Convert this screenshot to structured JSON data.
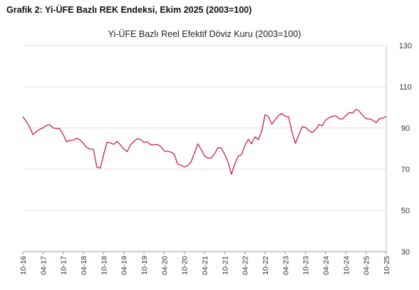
{
  "page_title": "Grafik 2: Yi-ÜFE Bazlı REK Endeksi, Ekim 2025 (2003=100)",
  "chart_data": {
    "type": "line",
    "title": "Yi-ÜFE Bazlı Reel Efektif Döviz Kuru (2003=100)",
    "ylim": [
      30,
      130
    ],
    "yticks": [
      30,
      50,
      70,
      90,
      110,
      130
    ],
    "y_axis_position": "right",
    "grid": true,
    "color": "#c8204a",
    "xtick_labels": [
      "10-16",
      "04-17",
      "10-17",
      "04-18",
      "10-18",
      "04-19",
      "10-19",
      "04-20",
      "10-20",
      "04-21",
      "10-21",
      "04-22",
      "10-22",
      "04-23",
      "10-23",
      "04-24",
      "10-24",
      "04-25",
      "10-25"
    ],
    "series": [
      {
        "values": [
          95.5,
          93.2,
          90.5,
          86.8,
          88.2,
          89.3,
          90.0,
          91.2,
          91.5,
          90.0,
          89.8,
          89.6,
          86.8,
          83.3,
          84.0,
          84.1,
          85.0,
          84.2,
          82.5,
          80.5,
          79.7,
          79.6,
          71.0,
          70.5,
          77.0,
          83.0,
          82.8,
          82.0,
          83.5,
          81.8,
          79.8,
          78.5,
          81.8,
          83.4,
          84.8,
          84.3,
          83.0,
          83.2,
          81.8,
          81.8,
          82.0,
          80.9,
          78.8,
          78.7,
          78.3,
          77.3,
          72.5,
          72.0,
          71.0,
          71.8,
          73.5,
          77.8,
          82.3,
          79.5,
          76.5,
          75.4,
          75.5,
          77.5,
          80.5,
          80.2,
          77.2,
          73.5,
          67.5,
          72.5,
          76.3,
          77.0,
          81.5,
          84.5,
          82.3,
          85.7,
          84.3,
          88.5,
          96.4,
          95.5,
          91.8,
          94.0,
          96.0,
          97.0,
          95.6,
          95.4,
          88.0,
          82.5,
          86.5,
          90.5,
          90.3,
          88.7,
          87.8,
          89.2,
          91.6,
          91.0,
          93.8,
          95.0,
          95.6,
          95.9,
          94.5,
          94.3,
          96.0,
          97.5,
          97.2,
          99.0,
          98.2,
          96.0,
          94.5,
          94.3,
          93.8,
          92.5,
          94.5,
          94.8,
          95.5
        ]
      }
    ]
  }
}
